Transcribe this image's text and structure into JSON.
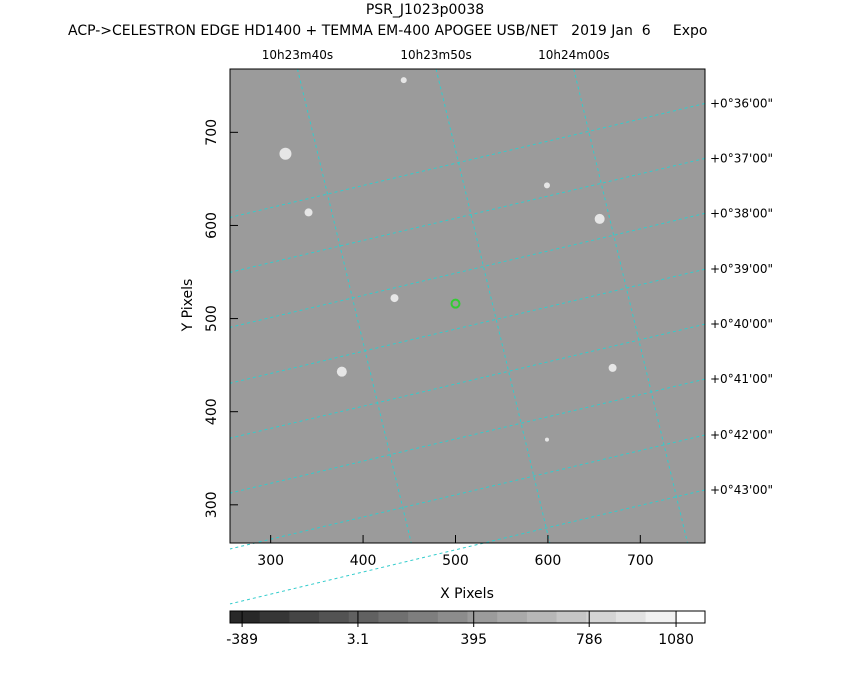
{
  "chart_data": {
    "type": "image",
    "title": "PSR_J1023p0038",
    "subtitle": "ACP->CELESTRON EDGE HD1400 + TEMMA EM-400 APOGEE USB/NET   2019 Jan  6     Expo",
    "x_label": "X Pixels",
    "y_label": "Y Pixels",
    "xlim": [
      256,
      770
    ],
    "ylim": [
      259,
      768
    ],
    "xticks": [
      300,
      400,
      500,
      600,
      700
    ],
    "yticks": [
      300,
      400,
      500,
      600,
      700
    ],
    "top_ticks": [
      {
        "value": 329,
        "label": "10h23m40s"
      },
      {
        "value": 479,
        "label": "10h23m50s"
      },
      {
        "value": 628,
        "label": "10h24m00s"
      }
    ],
    "right_ticks": [
      {
        "value": 731,
        "label": "+0°36'00\""
      },
      {
        "value": 672,
        "label": "+0°37'00\""
      },
      {
        "value": 613,
        "label": "+0°38'00\""
      },
      {
        "value": 553,
        "label": "+0°39'00\""
      },
      {
        "value": 494,
        "label": "+0°40'00\""
      },
      {
        "value": 435,
        "label": "+0°41'00\""
      },
      {
        "value": 375,
        "label": "+0°42'00\""
      },
      {
        "value": 316,
        "label": "+0°43'00\""
      }
    ],
    "grid_color": "#33cccc",
    "sources": [
      {
        "x": 316,
        "y": 677,
        "size": 6
      },
      {
        "x": 341,
        "y": 614,
        "size": 4
      },
      {
        "x": 444,
        "y": 756,
        "size": 3
      },
      {
        "x": 434,
        "y": 522,
        "size": 4
      },
      {
        "x": 377,
        "y": 443,
        "size": 5
      },
      {
        "x": 656,
        "y": 607,
        "size": 5
      },
      {
        "x": 670,
        "y": 447,
        "size": 4
      },
      {
        "x": 599,
        "y": 643,
        "size": 3
      },
      {
        "x": 599,
        "y": 370,
        "size": 2
      }
    ],
    "target": {
      "x": 500,
      "y": 516,
      "color": "#33cc33"
    },
    "colorbar": {
      "lim": [
        -430,
        1178
      ],
      "ticks": [
        -389,
        3.1,
        395,
        786,
        1080
      ]
    }
  }
}
